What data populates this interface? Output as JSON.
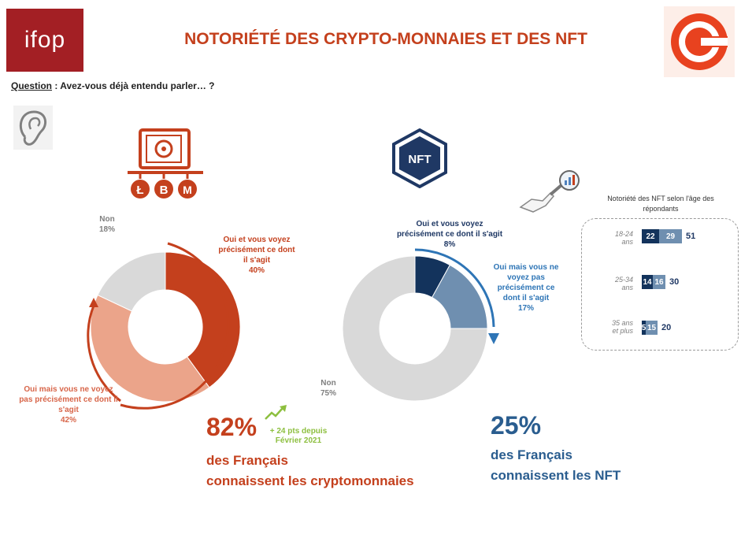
{
  "header": {
    "logo_text": "ifop",
    "title": "NOTORIÉTÉ DES CRYPTO-MONNAIES ET DES NFT",
    "question_label": "Question",
    "question_text": " : Avez-vous déjà entendu parler… ?"
  },
  "icons": {
    "ear": "ear-icon",
    "crypto": "crypto-safe-icon",
    "coins": [
      "litecoin-icon",
      "bitcoin-icon",
      "monero-icon"
    ],
    "nft": "nft-hexagon-icon",
    "analysis": "magnifier-chart-icon",
    "partner_logo": "partner-c-logo-icon",
    "trend": "trend-up-arrow-icon"
  },
  "chart_data": [
    {
      "type": "pie",
      "title": "",
      "slices": [
        {
          "label": "Oui et vous voyez précisément ce dont il s'agit",
          "value": 40,
          "display": "40%",
          "color": "#c4401d"
        },
        {
          "label": "Oui mais vous ne voyez pas précisément ce dont il s'agit",
          "value": 42,
          "display": "42%",
          "color": "#eba48a"
        },
        {
          "label": "Non",
          "value": 18,
          "display": "18%",
          "color": "#d9d9d9"
        }
      ],
      "headline": {
        "value": "82%",
        "text1": "des Français",
        "text2": "connaissent les cryptomonnaies",
        "gain1": "+ 24 pts depuis",
        "gain2": "Février 2021"
      }
    },
    {
      "type": "pie",
      "title": "",
      "slices": [
        {
          "label": "Oui et vous voyez précisément ce dont il s'agit",
          "value": 8,
          "display": "8%",
          "color": "#13335c"
        },
        {
          "label": "Oui mais vous ne voyez pas précisément ce dont il s'agit",
          "value": 17,
          "display": "17%",
          "color": "#6f8fb0"
        },
        {
          "label": "Non",
          "value": 75,
          "display": "75%",
          "color": "#d9d9d9"
        }
      ],
      "headline": {
        "value": "25%",
        "text1": "des Français",
        "text2": "connaissent les NFT"
      }
    },
    {
      "type": "bar",
      "title": "Notoriété des NFT selon l'âge des répondants",
      "categories": [
        "18-24 ans",
        "25-34 ans",
        "35 ans et plus"
      ],
      "series": [
        {
          "values": [
            22,
            14,
            5
          ],
          "color": "#13335c"
        },
        {
          "values": [
            29,
            16,
            15
          ],
          "color": "#6f8fb0"
        }
      ],
      "totals": [
        51,
        30,
        20
      ]
    }
  ],
  "labels": {
    "crypto_oui_precis": [
      "Oui et vous voyez",
      "précisément ce dont",
      "il s'agit",
      "40%"
    ],
    "crypto_oui_flou": [
      "Oui mais vous ne voyez",
      "pas précisément ce dont il",
      "s'agit",
      "42%"
    ],
    "crypto_non": [
      "Non",
      "18%"
    ],
    "nft_oui_precis": [
      "Oui et vous voyez",
      "précisément ce dont il s'agit",
      "8%"
    ],
    "nft_oui_flou": [
      "Oui mais vous ne",
      "voyez pas",
      "précisément ce",
      "dont il s'agit",
      "17%"
    ],
    "nft_non": [
      "Non",
      "75%"
    ],
    "ages": [
      [
        "18-24",
        "ans"
      ],
      [
        "25-34",
        "ans"
      ],
      [
        "35 ans",
        "et plus"
      ]
    ],
    "age_title": [
      "Notoriété des NFT selon l'âge des",
      "répondants"
    ]
  }
}
